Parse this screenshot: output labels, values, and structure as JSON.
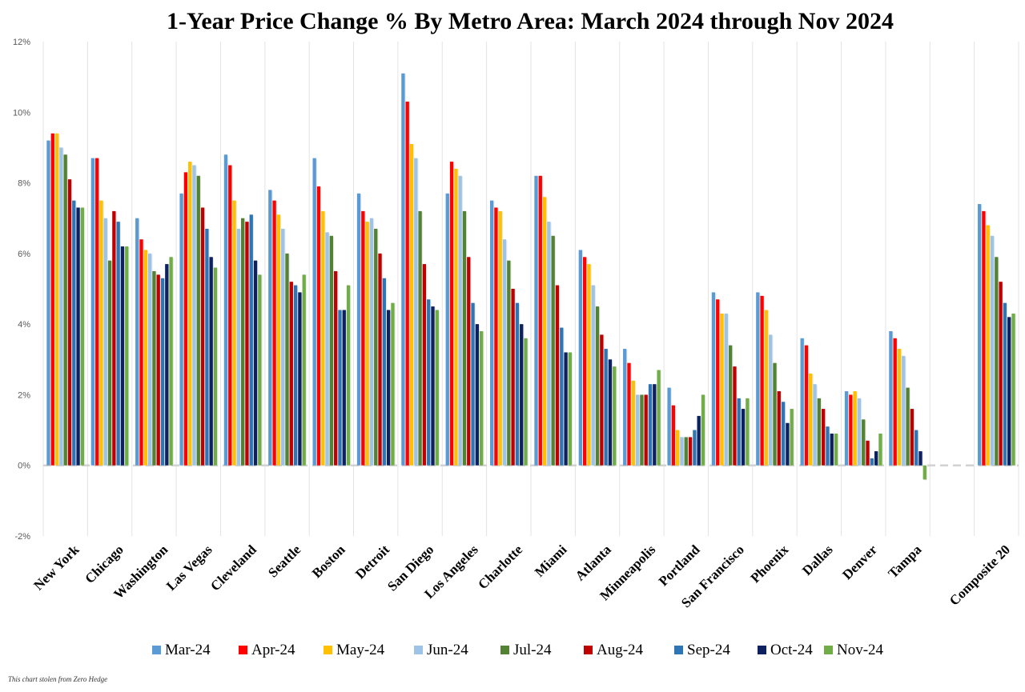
{
  "chart_data": {
    "type": "bar",
    "title": "1-Year Price Change % By Metro Area: March 2024 through Nov 2024",
    "credit": "This chart stolen from Zero Hedge",
    "ylim": [
      -2,
      12
    ],
    "yticks": [
      -2,
      0,
      2,
      4,
      6,
      8,
      10,
      12
    ],
    "ytick_labels": [
      "-2%",
      "0%",
      "2%",
      "4%",
      "6%",
      "8%",
      "10%",
      "12%"
    ],
    "grid": "vertical separators between categories; dashed zero line",
    "legend_position": "bottom",
    "categories": [
      "New York",
      "Chicago",
      "Washington",
      "Las Vegas",
      "Cleveland",
      "Seattle",
      "Boston",
      "Detroit",
      "San Diego",
      "Los Angeles",
      "Charlotte",
      "Miami",
      "Atlanta",
      "Minneapolis",
      "Portland",
      "San Francisco",
      "Phoenix",
      "Dallas",
      "Denver",
      "Tampa",
      "",
      "Composite 20"
    ],
    "series": [
      {
        "name": "Mar-24",
        "color": "#5b9bd5",
        "values": [
          9.2,
          8.7,
          7.0,
          7.7,
          8.8,
          7.8,
          8.7,
          7.7,
          11.1,
          7.7,
          7.5,
          8.2,
          6.1,
          3.3,
          2.2,
          4.9,
          4.9,
          3.6,
          2.1,
          3.8,
          null,
          7.4
        ]
      },
      {
        "name": "Apr-24",
        "color": "#ff0000",
        "values": [
          9.4,
          8.7,
          6.4,
          8.3,
          8.5,
          7.5,
          7.9,
          7.2,
          10.3,
          8.6,
          7.3,
          8.2,
          5.9,
          2.9,
          1.7,
          4.7,
          4.8,
          3.4,
          2.0,
          3.6,
          null,
          7.2
        ]
      },
      {
        "name": "May-24",
        "color": "#ffc000",
        "values": [
          9.4,
          7.5,
          6.1,
          8.6,
          7.5,
          7.1,
          7.2,
          6.9,
          9.1,
          8.4,
          7.2,
          7.6,
          5.7,
          2.4,
          1.0,
          4.3,
          4.4,
          2.6,
          2.1,
          3.3,
          null,
          6.8
        ]
      },
      {
        "name": "Jun-24",
        "color": "#9dc3e6",
        "values": [
          9.0,
          7.0,
          6.0,
          8.5,
          6.7,
          6.7,
          6.6,
          7.0,
          8.7,
          8.2,
          6.4,
          6.9,
          5.1,
          2.0,
          0.8,
          4.3,
          3.7,
          2.3,
          1.9,
          3.1,
          null,
          6.5
        ]
      },
      {
        "name": "Jul-24",
        "color": "#548235",
        "values": [
          8.8,
          5.8,
          5.5,
          8.2,
          7.0,
          6.0,
          6.5,
          6.7,
          7.2,
          7.2,
          5.8,
          6.5,
          4.5,
          2.0,
          0.8,
          3.4,
          2.9,
          1.9,
          1.3,
          2.2,
          null,
          5.9
        ]
      },
      {
        "name": "Aug-24",
        "color": "#c00000",
        "values": [
          8.1,
          7.2,
          5.4,
          7.3,
          6.9,
          5.2,
          5.5,
          6.0,
          5.7,
          5.9,
          5.0,
          5.1,
          3.7,
          2.0,
          0.8,
          2.8,
          2.1,
          1.6,
          0.7,
          1.6,
          null,
          5.2
        ]
      },
      {
        "name": "Sep-24",
        "color": "#2e75b6",
        "values": [
          7.5,
          6.9,
          5.3,
          6.7,
          7.1,
          5.1,
          4.4,
          5.3,
          4.7,
          4.6,
          4.6,
          3.9,
          3.3,
          2.3,
          1.0,
          1.9,
          1.8,
          1.1,
          0.2,
          1.0,
          null,
          4.6
        ]
      },
      {
        "name": "Oct-24",
        "color": "#0d2060",
        "values": [
          7.3,
          6.2,
          5.7,
          5.9,
          5.8,
          4.9,
          4.4,
          4.4,
          4.5,
          4.0,
          4.0,
          3.2,
          3.0,
          2.3,
          1.4,
          1.6,
          1.2,
          0.9,
          0.4,
          0.4,
          null,
          4.2
        ]
      },
      {
        "name": "Nov-24",
        "color": "#70ad47",
        "values": [
          7.3,
          6.2,
          5.9,
          5.6,
          5.4,
          5.4,
          5.1,
          4.6,
          4.4,
          3.8,
          3.6,
          3.2,
          2.8,
          2.7,
          2.0,
          1.9,
          1.6,
          0.9,
          0.9,
          -0.4,
          null,
          4.3
        ]
      }
    ]
  }
}
